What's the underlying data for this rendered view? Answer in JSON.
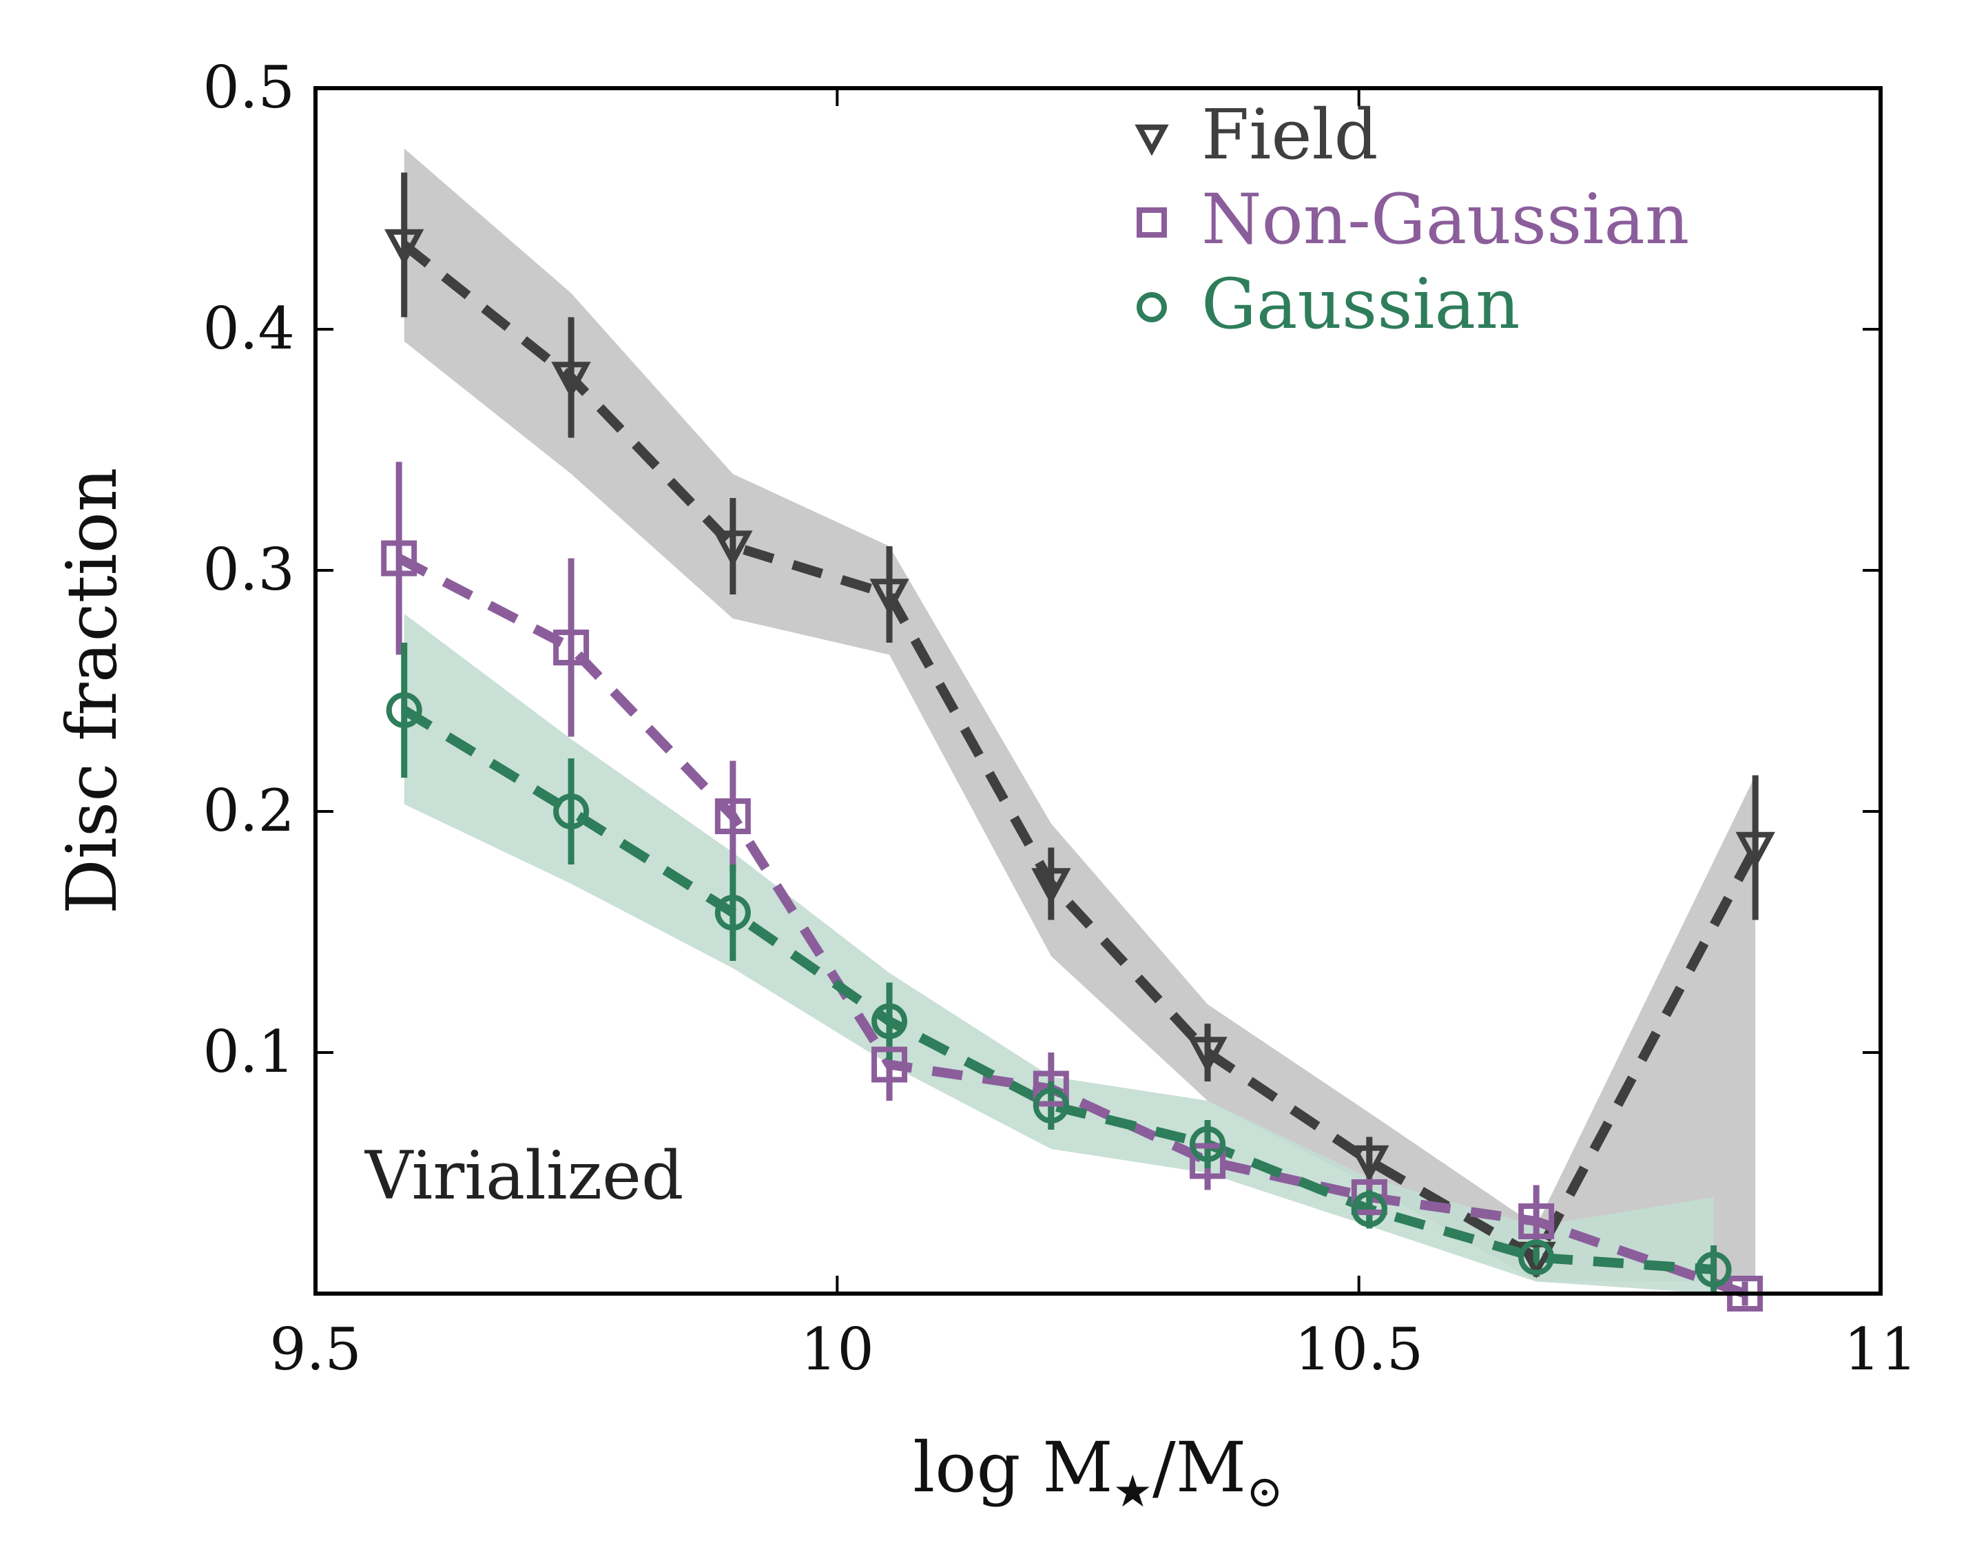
{
  "chart_data": {
    "type": "line",
    "xlabel": "log M★/M⊙",
    "ylabel": "Disc fraction",
    "xlim": [
      9.5,
      11.0
    ],
    "ylim": [
      0.0,
      0.5
    ],
    "x_ticks": [
      9.5,
      10.0,
      10.5,
      11.0
    ],
    "x_tick_labels": [
      "9.5",
      "10",
      "10.5",
      "11"
    ],
    "y_ticks": [
      0.1,
      0.2,
      0.3,
      0.4,
      0.5
    ],
    "y_tick_labels": [
      "0.1",
      "0.2",
      "0.3",
      "0.4",
      "0.5"
    ],
    "grid": false,
    "legend_position": "top-right",
    "annotation": "Virialized",
    "series": [
      {
        "name": "Field",
        "marker": "triangle-down",
        "color": "#3f3f3f",
        "band_color": "#c4c4c4",
        "x": [
          9.585,
          9.745,
          9.9,
          10.05,
          10.205,
          10.355,
          10.51,
          10.67,
          10.88
        ],
        "y": [
          0.435,
          0.38,
          0.31,
          0.29,
          0.17,
          0.1,
          0.055,
          0.015,
          0.185
        ],
        "err": [
          0.03,
          0.025,
          0.02,
          0.02,
          0.015,
          0.012,
          0.01,
          0.008,
          0.03
        ],
        "band_lo": [
          0.395,
          0.34,
          0.28,
          0.265,
          0.14,
          0.08,
          0.045,
          0.005,
          0.005
        ],
        "band_hi": [
          0.475,
          0.415,
          0.34,
          0.31,
          0.195,
          0.12,
          0.075,
          0.028,
          0.215
        ]
      },
      {
        "name": "Non-Gaussian",
        "marker": "square",
        "color": "#8b5e9b",
        "band_color": null,
        "x": [
          9.58,
          9.745,
          9.9,
          10.05,
          10.205,
          10.355,
          10.51,
          10.67,
          10.87
        ],
        "y": [
          0.305,
          0.268,
          0.198,
          0.095,
          0.085,
          0.055,
          0.04,
          0.03,
          0.0
        ],
        "err": [
          0.04,
          0.037,
          0.023,
          0.015,
          0.015,
          0.012,
          0.01,
          0.015,
          0.005
        ],
        "band_lo": [],
        "band_hi": []
      },
      {
        "name": "Gaussian",
        "marker": "circle",
        "color": "#2e7d5b",
        "band_color": "#c3ddd1",
        "x": [
          9.585,
          9.745,
          9.9,
          10.05,
          10.205,
          10.355,
          10.51,
          10.67,
          10.84
        ],
        "y": [
          0.242,
          0.2,
          0.158,
          0.113,
          0.078,
          0.062,
          0.035,
          0.015,
          0.01
        ],
        "err": [
          0.028,
          0.022,
          0.02,
          0.016,
          0.01,
          0.01,
          0.008,
          0.006,
          0.01
        ],
        "band_lo": [
          0.203,
          0.17,
          0.135,
          0.095,
          0.06,
          0.05,
          0.028,
          0.005,
          0.0
        ],
        "band_hi": [
          0.282,
          0.23,
          0.183,
          0.133,
          0.09,
          0.08,
          0.048,
          0.028,
          0.04
        ]
      }
    ]
  }
}
